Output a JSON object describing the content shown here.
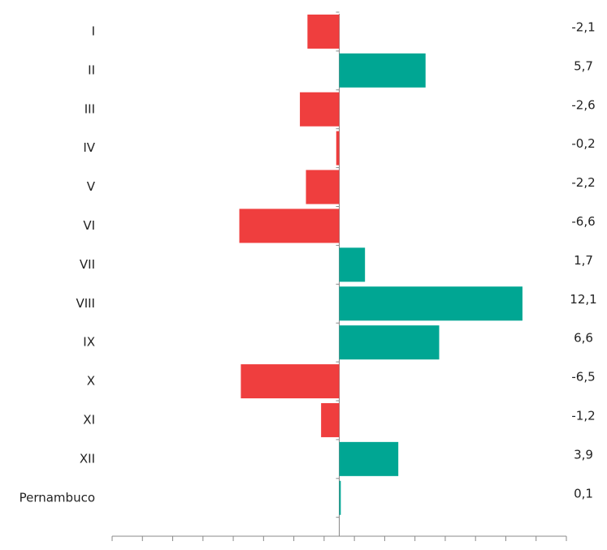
{
  "chart_data": {
    "type": "bar",
    "orientation": "horizontal",
    "categories": [
      "I",
      "II",
      "III",
      "IV",
      "V",
      "VI",
      "VII",
      "VIII",
      "IX",
      "X",
      "XI",
      "XII",
      "Pernambuco"
    ],
    "values": [
      -2.1,
      5.7,
      -2.6,
      -0.2,
      -2.2,
      -6.6,
      1.7,
      12.1,
      6.6,
      -6.5,
      -1.2,
      3.9,
      0.1
    ],
    "value_labels": [
      "-2,1",
      "5,7",
      "-2,6",
      "-0,2",
      "-2,2",
      "-6,6",
      "1,7",
      "12,1",
      "6,6",
      "-6,5",
      "-1,2",
      "3,9",
      "0,1"
    ],
    "colors": [
      "#ef3e3e",
      "#00a693",
      "#ef3e3e",
      "#ef3e3e",
      "#ef3e3e",
      "#ef3e3e",
      "#00a693",
      "#00a693",
      "#00a693",
      "#ef3e3e",
      "#ef3e3e",
      "#00a693",
      "#00a693"
    ],
    "xlim": [
      -15,
      15
    ],
    "xticks": [
      -15,
      -13,
      -11,
      -9,
      -7,
      -5,
      -3,
      -1,
      1,
      3,
      5,
      7,
      9,
      11,
      13,
      15
    ]
  }
}
